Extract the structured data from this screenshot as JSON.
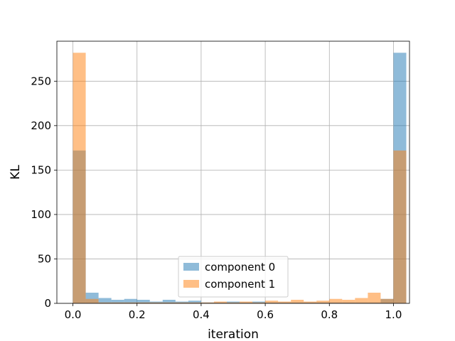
{
  "chart_data": {
    "type": "bar",
    "subtype": "histogram",
    "xlabel": "iteration",
    "ylabel": "KL",
    "xlim": [
      -0.05,
      1.05
    ],
    "ylim": [
      0,
      295
    ],
    "xticks": [
      0.0,
      0.2,
      0.4,
      0.6,
      0.8,
      1.0
    ],
    "xtick_labels": [
      "0.0",
      "0.2",
      "0.4",
      "0.6",
      "0.8",
      "1.0"
    ],
    "yticks": [
      0,
      50,
      100,
      150,
      200,
      250
    ],
    "ytick_labels": [
      "0",
      "50",
      "100",
      "150",
      "200",
      "250"
    ],
    "grid": true,
    "legend_position": "lower-center",
    "bin_start": 0.0,
    "bin_width": 0.04,
    "series": [
      {
        "name": "component 0",
        "color": "#1f77b4",
        "values": [
          172,
          12,
          6,
          4,
          5,
          4,
          2,
          4,
          2,
          3,
          1,
          1,
          2,
          1,
          2,
          1,
          1,
          1,
          1,
          1,
          1,
          1,
          1,
          1,
          5,
          282
        ]
      },
      {
        "name": "component 1",
        "color": "#ff7f0e",
        "values": [
          282,
          5,
          1,
          1,
          1,
          1,
          1,
          1,
          1,
          1,
          1,
          2,
          1,
          2,
          1,
          3,
          2,
          4,
          2,
          3,
          5,
          4,
          6,
          12,
          5,
          172
        ]
      }
    ]
  }
}
